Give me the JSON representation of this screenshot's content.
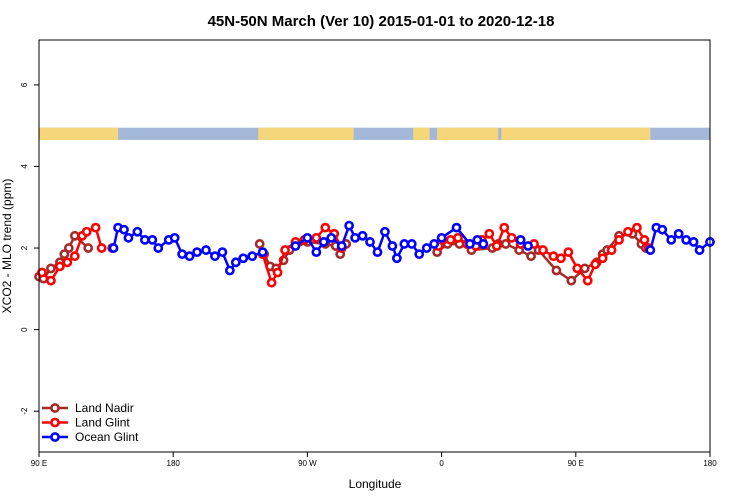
{
  "chart_data": {
    "type": "line",
    "title": "45N-50N March (Ver 10)   2015-01-01 to 2020-12-18",
    "xlabel": "Longitude",
    "ylabel": "XCO2 - MLO trend (ppm)",
    "xlim": [
      90,
      540
    ],
    "ylim": [
      -3,
      7.1
    ],
    "x_ticks": [
      {
        "value": 90,
        "label": "90 E"
      },
      {
        "value": 180,
        "label": "180"
      },
      {
        "value": 270,
        "label": "90 W"
      },
      {
        "value": 360,
        "label": "0"
      },
      {
        "value": 450,
        "label": "90 E"
      },
      {
        "value": 540,
        "label": "180"
      }
    ],
    "y_ticks": [
      {
        "value": -2,
        "label": "-2"
      },
      {
        "value": 0,
        "label": "0"
      },
      {
        "value": 2,
        "label": "2"
      },
      {
        "value": 4,
        "label": "4"
      },
      {
        "value": 6,
        "label": "6"
      }
    ],
    "land_ocean_band": {
      "y_bottom": 4.65,
      "y_top": 4.95,
      "land_color": "#f6d67a",
      "ocean_color": "#a3b8d9",
      "land_ranges": [
        [
          90,
          143
        ],
        [
          237,
          301
        ],
        [
          341,
          352
        ],
        [
          357,
          398
        ],
        [
          400,
          500
        ]
      ]
    },
    "legend_position": "bottom-left",
    "series": [
      {
        "name": "Land Nadir",
        "color": "#a52a2a",
        "points": [
          [
            90,
            1.3
          ],
          [
            93,
            1.25
          ],
          [
            98,
            1.5
          ],
          [
            104,
            1.65
          ],
          [
            107,
            1.85
          ],
          [
            110,
            2.0
          ],
          [
            114,
            2.3
          ],
          [
            123,
            2.0
          ],
          [
            139,
            2.0
          ],
          [
            238,
            2.1
          ],
          [
            241,
            1.85
          ],
          [
            245,
            1.55
          ],
          [
            249,
            1.5
          ],
          [
            254,
            1.7
          ],
          [
            258,
            1.95
          ],
          [
            270,
            2.15
          ],
          [
            282,
            2.1
          ],
          [
            289,
            2.05
          ],
          [
            292,
            1.85
          ],
          [
            296,
            2.1
          ],
          [
            357,
            1.9
          ],
          [
            364,
            2.1
          ],
          [
            372,
            2.1
          ],
          [
            380,
            1.95
          ],
          [
            394,
            2.0
          ],
          [
            398,
            2.1
          ],
          [
            403,
            2.1
          ],
          [
            412,
            1.95
          ],
          [
            420,
            1.8
          ],
          [
            425,
            1.95
          ],
          [
            437,
            1.45
          ],
          [
            447,
            1.2
          ],
          [
            456,
            1.5
          ],
          [
            464,
            1.65
          ],
          [
            468,
            1.85
          ],
          [
            471,
            1.95
          ],
          [
            479,
            2.3
          ],
          [
            488,
            2.35
          ],
          [
            494,
            2.1
          ],
          [
            497,
            2.0
          ]
        ]
      },
      {
        "name": "Land Glint",
        "color": "#ff0000",
        "points": [
          [
            92,
            1.4
          ],
          [
            98,
            1.2
          ],
          [
            104,
            1.55
          ],
          [
            109,
            1.65
          ],
          [
            114,
            1.8
          ],
          [
            119,
            2.3
          ],
          [
            122,
            2.4
          ],
          [
            128,
            2.5
          ],
          [
            132,
            2.0
          ],
          [
            240,
            1.85
          ],
          [
            246,
            1.15
          ],
          [
            250,
            1.4
          ],
          [
            255,
            1.95
          ],
          [
            262,
            2.15
          ],
          [
            268,
            2.2
          ],
          [
            276,
            2.25
          ],
          [
            282,
            2.5
          ],
          [
            288,
            2.35
          ],
          [
            293,
            2.0
          ],
          [
            358,
            2.05
          ],
          [
            366,
            2.2
          ],
          [
            371,
            2.25
          ],
          [
            377,
            2.1
          ],
          [
            383,
            2.05
          ],
          [
            387,
            2.2
          ],
          [
            392,
            2.35
          ],
          [
            397,
            2.05
          ],
          [
            402,
            2.5
          ],
          [
            407,
            2.25
          ],
          [
            413,
            2.1
          ],
          [
            422,
            2.1
          ],
          [
            428,
            1.95
          ],
          [
            435,
            1.8
          ],
          [
            440,
            1.75
          ],
          [
            445,
            1.9
          ],
          [
            451,
            1.5
          ],
          [
            458,
            1.2
          ],
          [
            463,
            1.6
          ],
          [
            468,
            1.75
          ],
          [
            474,
            1.95
          ],
          [
            479,
            2.2
          ],
          [
            485,
            2.4
          ],
          [
            491,
            2.5
          ],
          [
            496,
            2.2
          ],
          [
            499,
            2.0
          ]
        ]
      },
      {
        "name": "Ocean Glint",
        "color": "#0000ff",
        "points": [
          [
            140,
            2.0
          ],
          [
            143,
            2.5
          ],
          [
            147,
            2.45
          ],
          [
            150,
            2.25
          ],
          [
            156,
            2.4
          ],
          [
            161,
            2.2
          ],
          [
            166,
            2.2
          ],
          [
            170,
            2.0
          ],
          [
            177,
            2.2
          ],
          [
            181,
            2.25
          ],
          [
            186,
            1.85
          ],
          [
            191,
            1.8
          ],
          [
            196,
            1.9
          ],
          [
            202,
            1.95
          ],
          [
            208,
            1.8
          ],
          [
            213,
            1.9
          ],
          [
            218,
            1.45
          ],
          [
            222,
            1.65
          ],
          [
            227,
            1.75
          ],
          [
            233,
            1.8
          ],
          [
            240,
            1.9
          ],
          [
            262,
            2.05
          ],
          [
            270,
            2.25
          ],
          [
            276,
            1.9
          ],
          [
            281,
            2.15
          ],
          [
            286,
            2.25
          ],
          [
            293,
            2.05
          ],
          [
            298,
            2.55
          ],
          [
            302,
            2.25
          ],
          [
            307,
            2.3
          ],
          [
            312,
            2.15
          ],
          [
            317,
            1.9
          ],
          [
            322,
            2.4
          ],
          [
            327,
            2.05
          ],
          [
            330,
            1.75
          ],
          [
            335,
            2.1
          ],
          [
            340,
            2.1
          ],
          [
            345,
            1.85
          ],
          [
            350,
            2.0
          ],
          [
            355,
            2.1
          ],
          [
            360,
            2.25
          ],
          [
            370,
            2.5
          ],
          [
            379,
            2.1
          ],
          [
            384,
            2.2
          ],
          [
            388,
            2.1
          ],
          [
            413,
            2.2
          ],
          [
            418,
            2.05
          ],
          [
            500,
            1.95
          ],
          [
            504,
            2.5
          ],
          [
            508,
            2.45
          ],
          [
            514,
            2.2
          ],
          [
            519,
            2.35
          ],
          [
            524,
            2.2
          ],
          [
            529,
            2.15
          ],
          [
            533,
            1.95
          ],
          [
            540,
            2.15
          ]
        ]
      }
    ]
  }
}
